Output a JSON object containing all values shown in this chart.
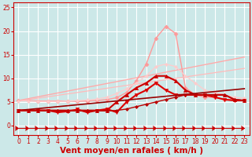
{
  "x": [
    0,
    1,
    2,
    3,
    4,
    5,
    6,
    7,
    8,
    9,
    10,
    11,
    12,
    13,
    14,
    15,
    16,
    17,
    18,
    19,
    20,
    21,
    22,
    23
  ],
  "bg_color": "#cce8e8",
  "grid_color": "#ffffff",
  "xlabel": "Vent moyen/en rafales ( km/h )",
  "xlabel_color": "#cc0000",
  "tick_color": "#cc0000",
  "lines": [
    {
      "values": [
        5.3,
        5.7,
        6.1,
        6.5,
        6.9,
        7.3,
        7.7,
        8.1,
        8.5,
        8.9,
        9.3,
        9.7,
        10.1,
        10.5,
        10.9,
        11.3,
        11.7,
        12.1,
        12.5,
        12.9,
        13.3,
        13.7,
        14.1,
        14.5
      ],
      "color": "#ffaaaa",
      "marker": null,
      "markersize": 0,
      "linewidth": 1.0,
      "alpha": 1.0
    },
    {
      "values": [
        5.3,
        5.3,
        5.2,
        5.2,
        5.2,
        5.2,
        5.1,
        5.2,
        5.3,
        5.5,
        5.9,
        7.0,
        9.5,
        13.0,
        18.5,
        21.0,
        19.5,
        8.0,
        6.5,
        6.0,
        6.0,
        5.5,
        5.5,
        5.3
      ],
      "color": "#ff9999",
      "marker": "D",
      "markersize": 2.5,
      "linewidth": 1.0,
      "alpha": 1.0
    },
    {
      "values": [
        5.2,
        5.5,
        5.8,
        6.1,
        6.4,
        6.7,
        7.0,
        7.3,
        7.6,
        7.9,
        8.2,
        8.5,
        8.8,
        9.1,
        9.4,
        9.7,
        10.0,
        10.3,
        10.6,
        10.9,
        11.2,
        11.5,
        11.8,
        12.1
      ],
      "color": "#ffbbbb",
      "marker": null,
      "markersize": 0,
      "linewidth": 0.9,
      "alpha": 1.0
    },
    {
      "values": [
        5.2,
        5.2,
        5.1,
        5.1,
        5.1,
        5.2,
        5.3,
        5.4,
        5.6,
        6.0,
        6.8,
        7.8,
        9.0,
        10.5,
        12.5,
        13.0,
        12.5,
        10.5,
        9.0,
        7.5,
        7.0,
        6.5,
        6.0,
        5.8
      ],
      "color": "#ffcccc",
      "marker": "D",
      "markersize": 2.0,
      "linewidth": 0.9,
      "alpha": 1.0
    },
    {
      "values": [
        3.2,
        3.2,
        3.2,
        3.2,
        3.2,
        3.2,
        3.2,
        3.2,
        3.2,
        3.2,
        5.0,
        6.5,
        8.0,
        9.0,
        10.5,
        10.5,
        9.5,
        7.5,
        6.5,
        6.5,
        6.5,
        6.5,
        5.5,
        5.3
      ],
      "color": "#cc0000",
      "marker": "^",
      "markersize": 3.0,
      "linewidth": 1.5,
      "alpha": 1.0
    },
    {
      "values": [
        3.2,
        3.2,
        3.2,
        3.2,
        2.8,
        3.0,
        3.4,
        2.8,
        3.2,
        3.5,
        2.8,
        5.0,
        6.5,
        7.5,
        9.0,
        7.5,
        6.5,
        6.5,
        6.5,
        6.5,
        6.0,
        5.5,
        5.3,
        5.3
      ],
      "color": "#dd0000",
      "marker": "v",
      "markersize": 3.0,
      "linewidth": 1.5,
      "alpha": 1.0
    },
    {
      "values": [
        3.2,
        3.4,
        3.6,
        3.8,
        4.0,
        4.2,
        4.4,
        4.6,
        4.8,
        5.0,
        5.2,
        5.4,
        5.6,
        5.8,
        6.0,
        6.2,
        6.4,
        6.6,
        6.8,
        7.0,
        7.2,
        7.4,
        7.6,
        7.8
      ],
      "color": "#990000",
      "marker": null,
      "markersize": 0,
      "linewidth": 1.2,
      "alpha": 1.0
    },
    {
      "values": [
        3.2,
        3.2,
        3.1,
        3.1,
        3.1,
        3.1,
        3.1,
        3.1,
        3.1,
        3.1,
        3.2,
        3.5,
        4.0,
        4.5,
        5.0,
        5.5,
        6.0,
        6.5,
        6.5,
        6.5,
        6.5,
        6.5,
        5.5,
        5.3
      ],
      "color": "#bb0000",
      "marker": "D",
      "markersize": 2.0,
      "linewidth": 1.0,
      "alpha": 1.0
    },
    {
      "values": [
        -0.5,
        -0.5,
        -0.5,
        -0.5,
        -0.5,
        -0.5,
        -0.5,
        -0.5,
        -0.5,
        -0.5,
        -0.5,
        -0.5,
        -0.5,
        -0.5,
        -0.5,
        -0.5,
        -0.5,
        -0.5,
        -0.5,
        -0.5,
        -0.5,
        -0.5,
        -0.5,
        -0.5
      ],
      "color": "#cc0000",
      "marker": 5,
      "markersize": 4.0,
      "linewidth": 0.8,
      "alpha": 1.0
    }
  ],
  "ylim": [
    -2,
    26
  ],
  "xlim": [
    -0.5,
    23.5
  ],
  "yticks": [
    0,
    5,
    10,
    15,
    20,
    25
  ],
  "xticks": [
    0,
    1,
    2,
    3,
    4,
    5,
    6,
    7,
    8,
    9,
    10,
    11,
    12,
    13,
    14,
    15,
    16,
    17,
    18,
    19,
    20,
    21,
    22,
    23
  ],
  "tick_fontsize": 5.5,
  "xlabel_fontsize": 7.5
}
